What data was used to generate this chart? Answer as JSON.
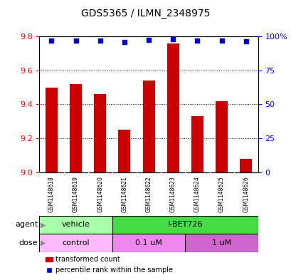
{
  "title": "GDS5365 / ILMN_2348975",
  "samples": [
    "GSM1148618",
    "GSM1148619",
    "GSM1148620",
    "GSM1148621",
    "GSM1148622",
    "GSM1148623",
    "GSM1148624",
    "GSM1148625",
    "GSM1148626"
  ],
  "bar_values": [
    9.5,
    9.52,
    9.46,
    9.25,
    9.54,
    9.76,
    9.33,
    9.42,
    9.08
  ],
  "bar_bottom": 9.0,
  "percentile_values": [
    97,
    97,
    97,
    96,
    97.5,
    98,
    97,
    97,
    96.5
  ],
  "ylim_left": [
    9.0,
    9.8
  ],
  "ylim_right": [
    0,
    100
  ],
  "yticks_left": [
    9.0,
    9.2,
    9.4,
    9.6,
    9.8
  ],
  "yticks_right": [
    0,
    25,
    50,
    75,
    100
  ],
  "ytick_right_labels": [
    "0",
    "25",
    "50",
    "75",
    "100%"
  ],
  "bar_color": "#cc0000",
  "dot_color": "#0000cc",
  "agent_vehicle_color": "#aaffaa",
  "agent_ibet_color": "#44dd44",
  "dose_control_color": "#ffbbff",
  "dose_01um_color": "#ee88ee",
  "dose_1um_color": "#cc66cc",
  "sample_bg_color": "#d0d0d0",
  "legend_bar_label": "transformed count",
  "legend_dot_label": "percentile rank within the sample",
  "agent_row_label": "agent",
  "dose_row_label": "dose",
  "background_color": "#ffffff"
}
